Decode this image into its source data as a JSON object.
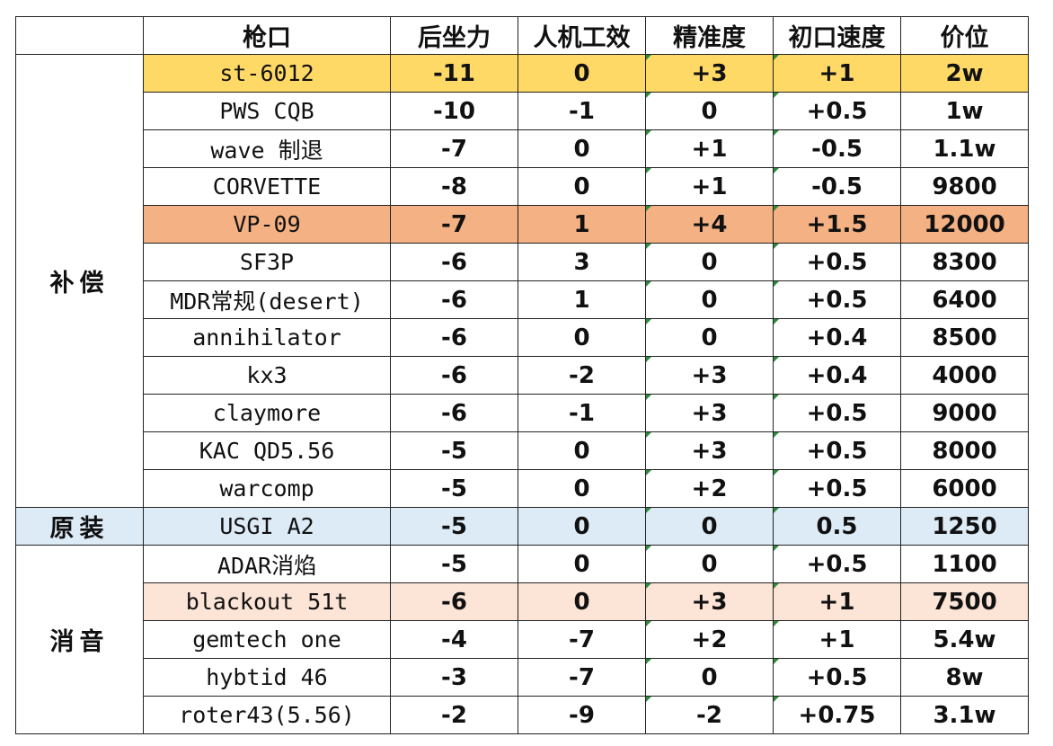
{
  "headers": [
    "",
    "枪口",
    "后坐力",
    "人机工效",
    "精准度",
    "初口速度",
    "价位"
  ],
  "categories": {
    "compensator": "补偿",
    "stock": "原装",
    "suppressor": "消音"
  },
  "rows": [
    {
      "name": "st-6012",
      "recoil": "-11",
      "ergo": "0",
      "acc": "+3",
      "vel": "+1",
      "price": "2w",
      "highlight": "yellow"
    },
    {
      "name": "PWS CQB",
      "recoil": "-10",
      "ergo": "-1",
      "acc": "0",
      "vel": "+0.5",
      "price": "1w",
      "highlight": ""
    },
    {
      "name": "wave 制退",
      "recoil": "-7",
      "ergo": "0",
      "acc": "+1",
      "vel": "-0.5",
      "price": "1.1w",
      "highlight": ""
    },
    {
      "name": "CORVETTE",
      "recoil": "-8",
      "ergo": "0",
      "acc": "+1",
      "vel": "-0.5",
      "price": "9800",
      "highlight": ""
    },
    {
      "name": "VP-09",
      "recoil": "-7",
      "ergo": "1",
      "acc": "+4",
      "vel": "+1.5",
      "price": "12000",
      "highlight": "orange"
    },
    {
      "name": "SF3P",
      "recoil": "-6",
      "ergo": "3",
      "acc": "0",
      "vel": "+0.5",
      "price": "8300",
      "highlight": ""
    },
    {
      "name": "MDR常规(desert)",
      "recoil": "-6",
      "ergo": "1",
      "acc": "0",
      "vel": "+0.5",
      "price": "6400",
      "highlight": ""
    },
    {
      "name": "annihilator",
      "recoil": "-6",
      "ergo": "0",
      "acc": "0",
      "vel": "+0.4",
      "price": "8500",
      "highlight": ""
    },
    {
      "name": "kx3",
      "recoil": "-6",
      "ergo": "-2",
      "acc": "+3",
      "vel": "+0.4",
      "price": "4000",
      "highlight": ""
    },
    {
      "name": "claymore",
      "recoil": "-6",
      "ergo": "-1",
      "acc": "+3",
      "vel": "+0.5",
      "price": "9000",
      "highlight": ""
    },
    {
      "name": "KAC QD5.56",
      "recoil": "-5",
      "ergo": "0",
      "acc": "+3",
      "vel": "+0.5",
      "price": "8000",
      "highlight": ""
    },
    {
      "name": "warcomp",
      "recoil": "-5",
      "ergo": "0",
      "acc": "+2",
      "vel": "+0.5",
      "price": "6000",
      "highlight": ""
    },
    {
      "name": "USGI A2",
      "recoil": "-5",
      "ergo": "0",
      "acc": "0",
      "vel": "0.5",
      "price": "1250",
      "highlight": "blue"
    },
    {
      "name": "ADAR消焰",
      "recoil": "-5",
      "ergo": "0",
      "acc": "0",
      "vel": "+0.5",
      "price": "1100",
      "highlight": ""
    },
    {
      "name": "blackout 51t",
      "recoil": "-6",
      "ergo": "0",
      "acc": "+3",
      "vel": "+1",
      "price": "7500",
      "highlight": "peach"
    },
    {
      "name": "gemtech one",
      "recoil": "-4",
      "ergo": "-7",
      "acc": "+2",
      "vel": "+1",
      "price": "5.4w",
      "highlight": ""
    },
    {
      "name": "hybtid 46",
      "recoil": "-3",
      "ergo": "-7",
      "acc": "0",
      "vel": "+0.5",
      "price": "8w",
      "highlight": ""
    },
    {
      "name": "roter43(5.56)",
      "recoil": "-2",
      "ergo": "-9",
      "acc": "-2",
      "vel": "+0.75",
      "price": "3.1w",
      "highlight": ""
    }
  ],
  "colors": {
    "yellow": "#ffd966",
    "orange": "#f4b183",
    "blue": "#ddebf7",
    "peach": "#fce4d6",
    "border": "#222222"
  }
}
